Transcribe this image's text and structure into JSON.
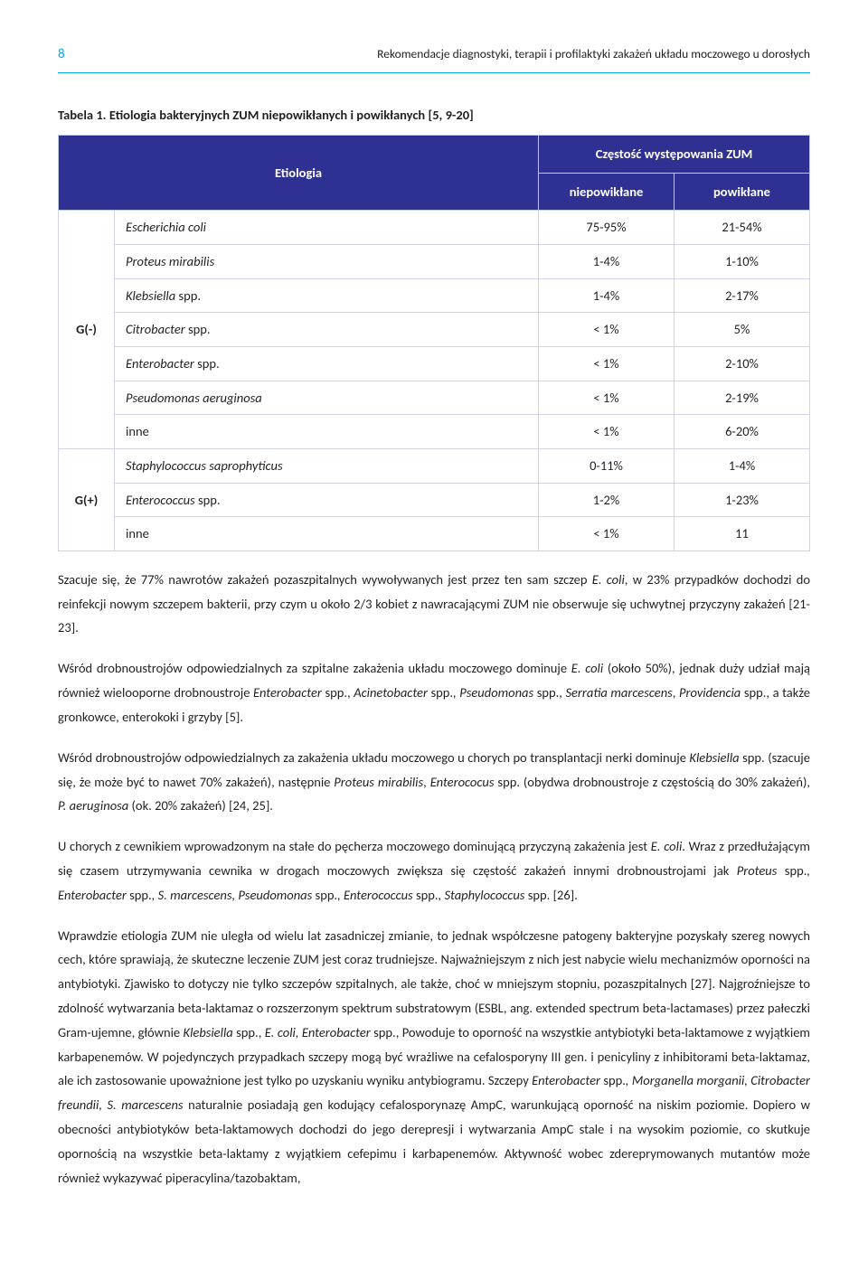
{
  "header": {
    "page_number": "8",
    "running_title": "Rekomendacje diagnostyki, terapii i profilaktyki zakażeń układu moczowego u dorosłych"
  },
  "table": {
    "caption_label": "Tabela 1.",
    "caption_text": "Etiologia bakteryjnych ZUM niepowikłanych i powikłanych [5, 9-20]",
    "col_etiologia": "Etiologia",
    "col_group": "Częstość występowania ZUM",
    "col_niep": "niepowikłane",
    "col_pow": "powikłane",
    "group_gminus": "G(-)",
    "group_gplus": "G(+)",
    "rows_gminus": [
      {
        "name": "Escherichia coli",
        "niep": "75-95%",
        "pow": "21-54%"
      },
      {
        "name": "Proteus mirabilis",
        "niep": "1-4%",
        "pow": "1-10%"
      },
      {
        "name_html": "Klebsiella <span class=\"nonitalic\">spp.</span>",
        "niep": "1-4%",
        "pow": "2-17%"
      },
      {
        "name_html": "Citrobacter <span class=\"nonitalic\">spp.</span>",
        "niep": "< 1%",
        "pow": "5%"
      },
      {
        "name_html": "Enterobacter <span class=\"nonitalic\">spp.</span>",
        "niep": "< 1%",
        "pow": "2-10%"
      },
      {
        "name": "Pseudomonas aeruginosa",
        "niep": "< 1%",
        "pow": "2-19%"
      },
      {
        "name_plain": "inne",
        "niep": "< 1%",
        "pow": "6-20%"
      }
    ],
    "rows_gplus": [
      {
        "name": "Staphylococcus saprophyticus",
        "niep": "0-11%",
        "pow": "1-4%"
      },
      {
        "name_html": "Enterococcus <span class=\"nonitalic\">spp.</span>",
        "niep": "1-2%",
        "pow": "1-23%"
      },
      {
        "name_plain": "inne",
        "niep": "< 1%",
        "pow": "11"
      }
    ]
  },
  "paragraphs": {
    "p1": "Szacuje się, że 77% nawrotów zakażeń pozaszpitalnych wywoływanych jest przez ten sam szczep <em>E. coli</em>, w 23% przypadków dochodzi do reinfekcji nowym szczepem bakterii, przy czym u około 2/3 kobiet z nawracającymi ZUM nie obserwuje się uchwytnej przyczyny zakażeń [21-23].",
    "p2": "Wśród drobnoustrojów odpowiedzialnych za szpitalne zakażenia układu moczowego dominuje <em>E. coli</em> (około 50%), jednak duży udział mają również wielooporne drobnoustroje <em>Enterobacter</em> spp., <em>Acinetobacter</em> spp.<em>, Pseudomonas</em> spp., <em>Serratia marcescens</em>, <em>Providencia</em> spp., a także gronkowce, enterokoki i grzyby [5].",
    "p3": "Wśród drobnoustrojów odpowiedzialnych za zakażenia układu moczowego u chorych po transplantacji nerki dominuje <em>Klebsiella</em> spp. (szacuje się, że może być to nawet 70% zakażeń), następnie <em>Proteus mirabilis</em>, <em>Enterococus</em> spp. (obydwa drobnoustroje z częstością do 30% zakażeń), <em>P. aeruginosa</em> (ok. 20% zakażeń) [24, 25].",
    "p4": "U chorych z cewnikiem wprowadzonym na stałe do pęcherza moczowego dominującą przyczyną zakażenia jest <em>E. coli</em>. Wraz z przedłużającym się czasem utrzymywania cewnika w drogach moczowych zwiększa się częstość zakażeń innymi drobnoustrojami jak <em>Proteus</em> spp.<em>, Enterobacter</em> spp.<em>, S. marcescens, Pseudomonas</em> spp.<em>, Enterococcus</em> spp.<em>, Staphylococcus</em> spp.<em> </em>[26].",
    "p5": "Wprawdzie etiologia ZUM nie uległa od wielu lat zasadniczej zmianie, to jednak współczesne patogeny bakteryjne pozyskały szereg nowych cech, które sprawiają, że skuteczne leczenie ZUM jest coraz trudniejsze. Najważniejszym z nich jest nabycie wielu mechanizmów oporności na antybiotyki. Zjawisko to dotyczy nie tylko szczepów szpitalnych, ale także, choć w mniejszym stopniu, pozaszpitalnych [27]. Najgroźniejsze to zdolność wytwarzania beta-laktamaz o rozszerzonym spektrum substratowym (ESBL, ang. extended spectrum beta-lactamases) przez pałeczki Gram-ujemne, głównie <em>Klebsiella</em> spp., <em>E. coli, Enterobacter</em> spp., Powoduje to oporność na wszystkie antybiotyki beta-laktamowe z wyjątkiem karbapenemów. W pojedynczych przypadkach szczepy mogą być wrażliwe na cefalosporyny III gen. i penicyliny z inhibitorami beta-laktamaz, ale ich zastosowanie upoważnione jest tylko po uzyskaniu wyniku antybiogramu. Szczepy <em>Enterobacter</em> spp.<em>, Morganella morganii, Citrobacter freundii, S. marcescens</em> naturalnie posiadają gen kodujący cefalosporynazę AmpC, warunkującą oporność na niskim poziomie. Dopiero w obecności antybiotyków beta-laktamowych dochodzi do jego derepresji i wytwarzania AmpC stale i na wysokim poziomie, co skutkuje opornością na wszystkie beta-laktamy z wyjątkiem cefepimu i karbapenemów. Aktywność wobec zdereprymowanych mutantów może również wykazywać piperacylina/tazobaktam,"
  }
}
